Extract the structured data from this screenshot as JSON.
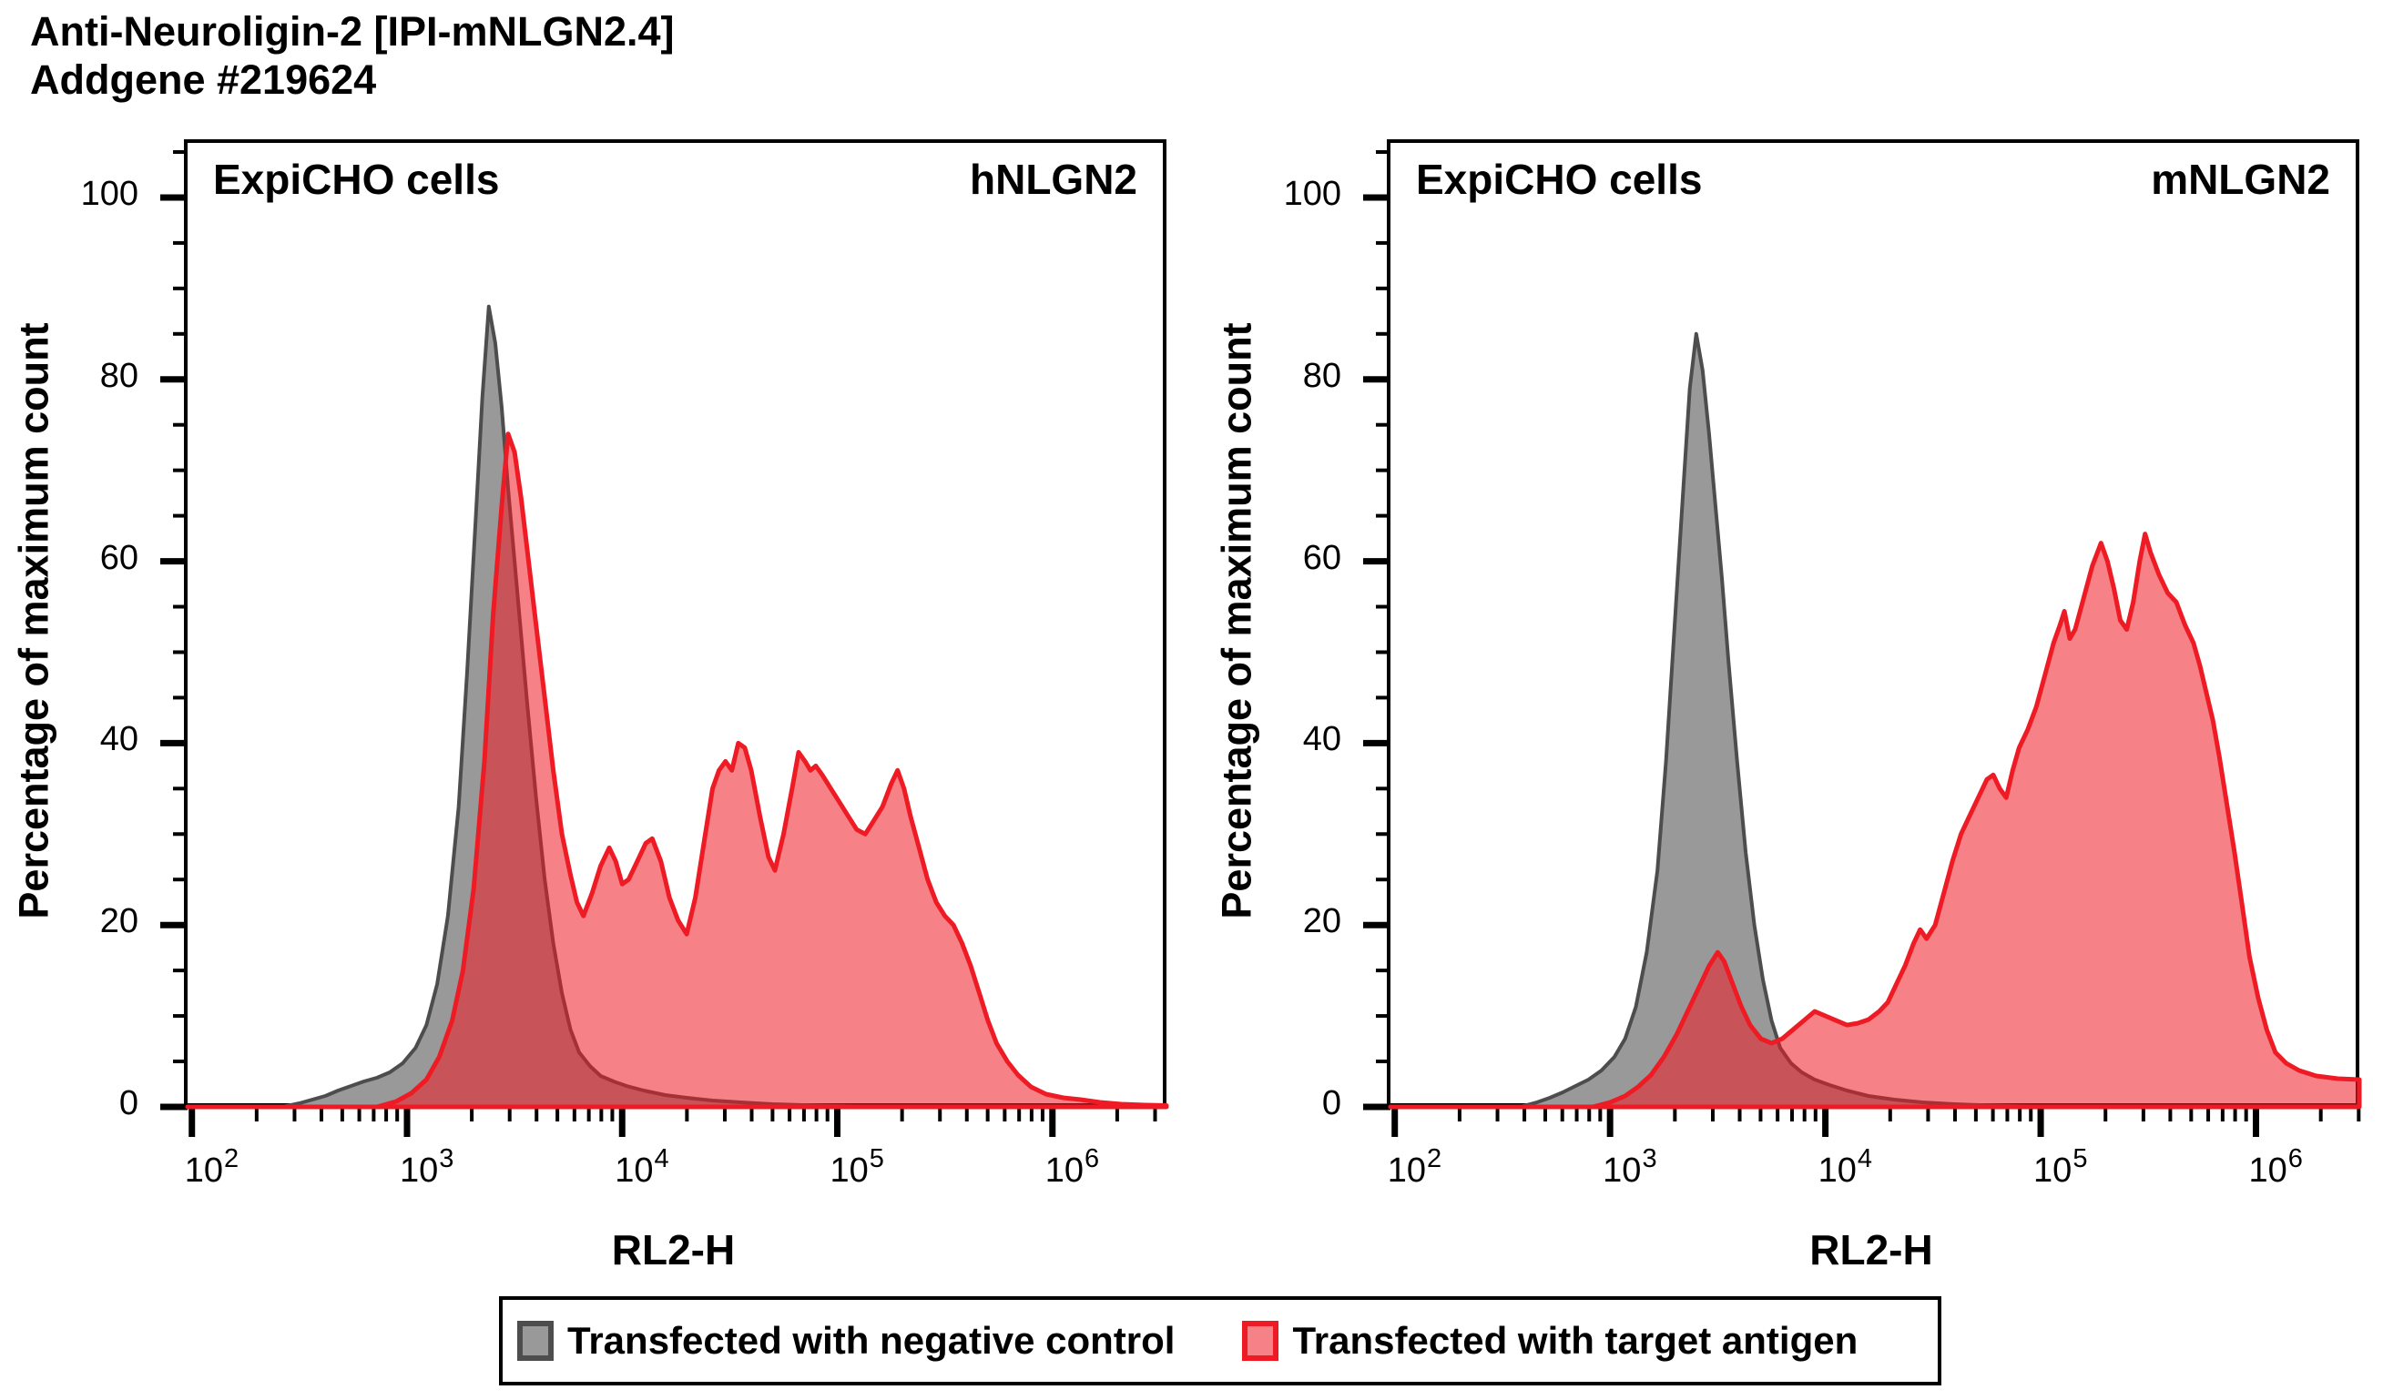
{
  "title": {
    "line1": "Anti-Neuroligin-2 [IPI-mNLGN2.4]",
    "line2": "Addgene #219624"
  },
  "colors": {
    "axis": "#000000",
    "negative_control_fill": "#999999",
    "negative_control_stroke": "#4d4d4d",
    "target_antigen_fill": "rgba(238,28,36,0.55)",
    "target_antigen_stroke": "#ee1b24"
  },
  "legend": {
    "items": [
      {
        "label": "Transfected with negative control",
        "fill": "#999999",
        "stroke": "#4d4d4d"
      },
      {
        "label": "Transfected with target antigen",
        "fill": "rgba(238,28,36,0.55)",
        "stroke": "#ee1b24"
      }
    ]
  },
  "chart_data": [
    {
      "type": "area",
      "inner_label_left": "ExpiCHO cells",
      "inner_label_right": "hNLGN2",
      "xlabel": "RL2-H",
      "ylabel": "Percentage of maximum count",
      "x_scale": "log10",
      "xlim_log10": [
        1.98,
        6.53
      ],
      "ylim": [
        0,
        106
      ],
      "x_tick_base": "10",
      "x_tick_exponents": [
        2,
        3,
        4,
        5,
        6
      ],
      "y_ticks": [
        0,
        20,
        40,
        60,
        80,
        100
      ],
      "grid": false,
      "series": [
        {
          "name": "Transfected with negative control",
          "points_log10x_pct": [
            [
              2.42,
              0
            ],
            [
              2.5,
              0.4
            ],
            [
              2.56,
              0.8
            ],
            [
              2.62,
              1.2
            ],
            [
              2.68,
              1.8
            ],
            [
              2.74,
              2.3
            ],
            [
              2.8,
              2.8
            ],
            [
              2.86,
              3.2
            ],
            [
              2.92,
              3.8
            ],
            [
              2.98,
              4.8
            ],
            [
              3.04,
              6.5
            ],
            [
              3.09,
              9
            ],
            [
              3.14,
              13.5
            ],
            [
              3.19,
              21
            ],
            [
              3.24,
              33
            ],
            [
              3.28,
              48
            ],
            [
              3.32,
              65
            ],
            [
              3.35,
              78
            ],
            [
              3.38,
              88
            ],
            [
              3.41,
              84
            ],
            [
              3.44,
              77
            ],
            [
              3.47,
              68
            ],
            [
              3.5,
              60
            ],
            [
              3.53,
              52
            ],
            [
              3.56,
              44
            ],
            [
              3.6,
              34
            ],
            [
              3.64,
              25
            ],
            [
              3.68,
              18
            ],
            [
              3.72,
              12.5
            ],
            [
              3.76,
              8.5
            ],
            [
              3.8,
              6
            ],
            [
              3.85,
              4.5
            ],
            [
              3.9,
              3.4
            ],
            [
              3.96,
              2.8
            ],
            [
              4.02,
              2.3
            ],
            [
              4.1,
              1.8
            ],
            [
              4.2,
              1.3
            ],
            [
              4.3,
              1
            ],
            [
              4.42,
              0.7
            ],
            [
              4.55,
              0.5
            ],
            [
              4.7,
              0.3
            ],
            [
              4.9,
              0.15
            ],
            [
              5.1,
              0.05
            ],
            [
              5.3,
              0
            ]
          ]
        },
        {
          "name": "Transfected with target antigen",
          "points_log10x_pct": [
            [
              2.86,
              0
            ],
            [
              2.95,
              0.6
            ],
            [
              3.02,
              1.5
            ],
            [
              3.09,
              3
            ],
            [
              3.15,
              5.5
            ],
            [
              3.21,
              9.5
            ],
            [
              3.26,
              15
            ],
            [
              3.31,
              24
            ],
            [
              3.36,
              38
            ],
            [
              3.4,
              54
            ],
            [
              3.44,
              66
            ],
            [
              3.47,
              74
            ],
            [
              3.5,
              72
            ],
            [
              3.53,
              67
            ],
            [
              3.56,
              61
            ],
            [
              3.6,
              53
            ],
            [
              3.64,
              45
            ],
            [
              3.68,
              37
            ],
            [
              3.72,
              30
            ],
            [
              3.76,
              25.5
            ],
            [
              3.79,
              22.5
            ],
            [
              3.82,
              21
            ],
            [
              3.86,
              23.5
            ],
            [
              3.9,
              26.5
            ],
            [
              3.94,
              28.5
            ],
            [
              3.97,
              27
            ],
            [
              4.0,
              24.5
            ],
            [
              4.03,
              25
            ],
            [
              4.07,
              27
            ],
            [
              4.11,
              29
            ],
            [
              4.14,
              29.5
            ],
            [
              4.18,
              27
            ],
            [
              4.22,
              23
            ],
            [
              4.26,
              20.5
            ],
            [
              4.3,
              19
            ],
            [
              4.34,
              23
            ],
            [
              4.38,
              29
            ],
            [
              4.42,
              35
            ],
            [
              4.45,
              37
            ],
            [
              4.48,
              38
            ],
            [
              4.51,
              37
            ],
            [
              4.54,
              40
            ],
            [
              4.57,
              39.5
            ],
            [
              4.6,
              37
            ],
            [
              4.64,
              32
            ],
            [
              4.68,
              27.5
            ],
            [
              4.71,
              26
            ],
            [
              4.75,
              30
            ],
            [
              4.79,
              35
            ],
            [
              4.82,
              39
            ],
            [
              4.85,
              38
            ],
            [
              4.875,
              37
            ],
            [
              4.9,
              37.5
            ],
            [
              4.93,
              36.5
            ],
            [
              4.97,
              35
            ],
            [
              5.01,
              33.5
            ],
            [
              5.05,
              32
            ],
            [
              5.09,
              30.5
            ],
            [
              5.13,
              30
            ],
            [
              5.17,
              31.5
            ],
            [
              5.21,
              33
            ],
            [
              5.25,
              35.5
            ],
            [
              5.28,
              37
            ],
            [
              5.31,
              35
            ],
            [
              5.34,
              32
            ],
            [
              5.38,
              28.5
            ],
            [
              5.42,
              25
            ],
            [
              5.46,
              22.5
            ],
            [
              5.5,
              21
            ],
            [
              5.54,
              20
            ],
            [
              5.58,
              18
            ],
            [
              5.62,
              15.5
            ],
            [
              5.66,
              12.5
            ],
            [
              5.7,
              9.5
            ],
            [
              5.74,
              7
            ],
            [
              5.79,
              5
            ],
            [
              5.84,
              3.5
            ],
            [
              5.9,
              2.2
            ],
            [
              5.97,
              1.4
            ],
            [
              6.05,
              1
            ],
            [
              6.13,
              0.8
            ],
            [
              6.22,
              0.5
            ],
            [
              6.32,
              0.3
            ],
            [
              6.43,
              0.2
            ],
            [
              6.53,
              0.15
            ]
          ]
        }
      ]
    },
    {
      "type": "area",
      "inner_label_left": "ExpiCHO cells",
      "inner_label_right": "mNLGN2",
      "xlabel": "RL2-H",
      "ylabel": "Percentage of maximum count",
      "x_scale": "log10",
      "xlim_log10": [
        1.98,
        6.48
      ],
      "ylim": [
        0,
        106
      ],
      "x_tick_base": "10",
      "x_tick_exponents": [
        2,
        3,
        4,
        5,
        6
      ],
      "y_ticks": [
        0,
        20,
        40,
        60,
        80,
        100
      ],
      "grid": false,
      "series": [
        {
          "name": "Transfected with negative control",
          "points_log10x_pct": [
            [
              2.58,
              0
            ],
            [
              2.66,
              0.5
            ],
            [
              2.72,
              1
            ],
            [
              2.78,
              1.6
            ],
            [
              2.84,
              2.3
            ],
            [
              2.9,
              3
            ],
            [
              2.96,
              4
            ],
            [
              3.02,
              5.5
            ],
            [
              3.07,
              7.5
            ],
            [
              3.12,
              11
            ],
            [
              3.17,
              17
            ],
            [
              3.22,
              26
            ],
            [
              3.26,
              38
            ],
            [
              3.3,
              53
            ],
            [
              3.34,
              68
            ],
            [
              3.37,
              79
            ],
            [
              3.4,
              85
            ],
            [
              3.43,
              81
            ],
            [
              3.46,
              74
            ],
            [
              3.49,
              66
            ],
            [
              3.52,
              58
            ],
            [
              3.55,
              49
            ],
            [
              3.59,
              38
            ],
            [
              3.63,
              28
            ],
            [
              3.67,
              20
            ],
            [
              3.71,
              14
            ],
            [
              3.75,
              9.5
            ],
            [
              3.79,
              6.5
            ],
            [
              3.84,
              4.8
            ],
            [
              3.89,
              3.8
            ],
            [
              3.95,
              3
            ],
            [
              4.02,
              2.4
            ],
            [
              4.1,
              1.8
            ],
            [
              4.2,
              1.2
            ],
            [
              4.32,
              0.8
            ],
            [
              4.45,
              0.5
            ],
            [
              4.6,
              0.3
            ],
            [
              4.78,
              0.15
            ],
            [
              4.95,
              0.05
            ],
            [
              5.1,
              0
            ]
          ]
        },
        {
          "name": "Transfected with target antigen",
          "points_log10x_pct": [
            [
              2.92,
              0
            ],
            [
              3.0,
              0.5
            ],
            [
              3.07,
              1.2
            ],
            [
              3.13,
              2.2
            ],
            [
              3.19,
              3.5
            ],
            [
              3.25,
              5.5
            ],
            [
              3.31,
              8
            ],
            [
              3.37,
              11
            ],
            [
              3.42,
              13.5
            ],
            [
              3.46,
              15.5
            ],
            [
              3.5,
              17
            ],
            [
              3.53,
              16
            ],
            [
              3.57,
              13.5
            ],
            [
              3.61,
              11
            ],
            [
              3.65,
              9
            ],
            [
              3.7,
              7.5
            ],
            [
              3.75,
              7
            ],
            [
              3.8,
              7.5
            ],
            [
              3.85,
              8.5
            ],
            [
              3.9,
              9.5
            ],
            [
              3.95,
              10.5
            ],
            [
              4.0,
              10
            ],
            [
              4.05,
              9.5
            ],
            [
              4.1,
              9
            ],
            [
              4.15,
              9.2
            ],
            [
              4.2,
              9.6
            ],
            [
              4.25,
              10.5
            ],
            [
              4.29,
              11.5
            ],
            [
              4.33,
              13.5
            ],
            [
              4.37,
              15.5
            ],
            [
              4.41,
              18
            ],
            [
              4.44,
              19.5
            ],
            [
              4.47,
              18.5
            ],
            [
              4.51,
              20
            ],
            [
              4.55,
              23.5
            ],
            [
              4.59,
              27
            ],
            [
              4.63,
              30
            ],
            [
              4.67,
              32
            ],
            [
              4.71,
              34
            ],
            [
              4.75,
              36
            ],
            [
              4.78,
              36.5
            ],
            [
              4.81,
              35
            ],
            [
              4.84,
              34
            ],
            [
              4.87,
              37
            ],
            [
              4.9,
              39.5
            ],
            [
              4.94,
              41.5
            ],
            [
              4.98,
              44
            ],
            [
              5.02,
              47.5
            ],
            [
              5.06,
              51
            ],
            [
              5.09,
              53
            ],
            [
              5.11,
              54.5
            ],
            [
              5.135,
              51.5
            ],
            [
              5.16,
              52.5
            ],
            [
              5.2,
              56
            ],
            [
              5.24,
              59.5
            ],
            [
              5.28,
              62
            ],
            [
              5.31,
              60
            ],
            [
              5.34,
              57
            ],
            [
              5.37,
              53.5
            ],
            [
              5.4,
              52.5
            ],
            [
              5.43,
              55.5
            ],
            [
              5.46,
              60
            ],
            [
              5.485,
              63
            ],
            [
              5.51,
              61
            ],
            [
              5.55,
              58.5
            ],
            [
              5.59,
              56.5
            ],
            [
              5.63,
              55.5
            ],
            [
              5.67,
              53
            ],
            [
              5.71,
              51
            ],
            [
              5.74,
              48.5
            ],
            [
              5.77,
              45.5
            ],
            [
              5.8,
              42.5
            ],
            [
              5.83,
              38.5
            ],
            [
              5.86,
              34
            ],
            [
              5.9,
              28
            ],
            [
              5.94,
              21.5
            ],
            [
              5.97,
              16.5
            ],
            [
              6.01,
              12
            ],
            [
              6.05,
              8.5
            ],
            [
              6.09,
              6
            ],
            [
              6.14,
              4.8
            ],
            [
              6.2,
              4
            ],
            [
              6.28,
              3.4
            ],
            [
              6.38,
              3.1
            ],
            [
              6.48,
              3
            ]
          ]
        }
      ]
    }
  ]
}
